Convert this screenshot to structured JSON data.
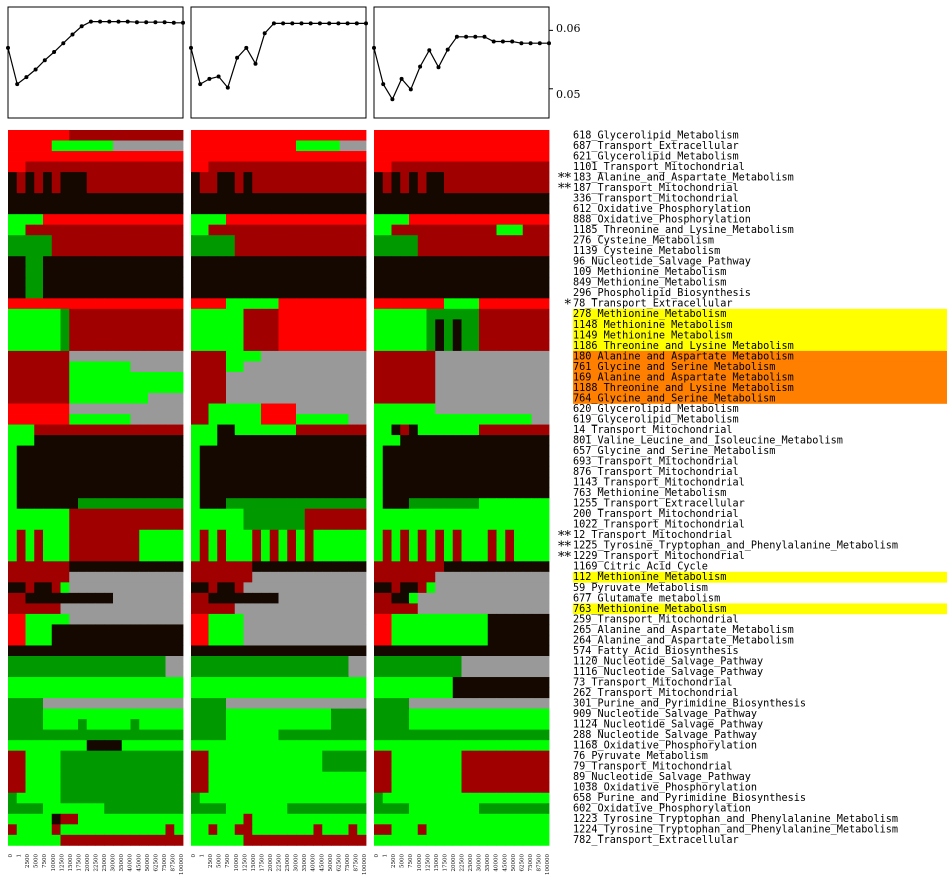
{
  "chart_data": {
    "type": "heatmap",
    "line_panels": [
      {
        "y": [
          0.057,
          0.0508,
          0.052,
          0.0533,
          0.0549,
          0.0563,
          0.0578,
          0.0593,
          0.0607,
          0.0615,
          0.0615,
          0.0615,
          0.0615,
          0.0615,
          0.0614,
          0.0614,
          0.0614,
          0.0614,
          0.0613,
          0.0613
        ]
      },
      {
        "y": [
          0.057,
          0.0508,
          0.0517,
          0.0521,
          0.0502,
          0.0553,
          0.057,
          0.0543,
          0.0595,
          0.0612,
          0.0612,
          0.0612,
          0.0612,
          0.0612,
          0.0612,
          0.0612,
          0.0612,
          0.0612,
          0.0612,
          0.0612
        ]
      },
      {
        "y": [
          0.057,
          0.0508,
          0.0482,
          0.0517,
          0.0499,
          0.0538,
          0.0566,
          0.0537,
          0.0567,
          0.0589,
          0.0589,
          0.0589,
          0.0589,
          0.0581,
          0.0581,
          0.0581,
          0.0578,
          0.0578,
          0.0578,
          0.0578
        ]
      }
    ],
    "ylim": [
      0.045,
      0.064
    ],
    "yticks": [
      "0.06",
      "0.05"
    ],
    "xticks": [
      "0",
      "1",
      "2500",
      "5000",
      "7500",
      "10000",
      "12500",
      "15000",
      "17500",
      "20000",
      "22500",
      "25000",
      "30000",
      "35000",
      "40000",
      "45000",
      "50000",
      "62500",
      "75000",
      "87500",
      "100000"
    ],
    "rows": [
      {
        "label": "618_Glycerolipid_Metabolism",
        "mark": "",
        "hl": ""
      },
      {
        "label": "687_Transport_Extracellular",
        "mark": "",
        "hl": ""
      },
      {
        "label": "621_Glycerolipid_Metabolism",
        "mark": "",
        "hl": ""
      },
      {
        "label": "1101_Transport_Mitochondrial",
        "mark": "",
        "hl": ""
      },
      {
        "label": "183_Alanine_and_Aspartate_Metabolism",
        "mark": "**",
        "hl": ""
      },
      {
        "label": "187_Transport_Mitochondrial",
        "mark": "**",
        "hl": ""
      },
      {
        "label": "336_Transport_Mitochondrial",
        "mark": "",
        "hl": ""
      },
      {
        "label": "612_Oxidative_Phosphorylation",
        "mark": "",
        "hl": ""
      },
      {
        "label": "888_Oxidative_Phosphorylation",
        "mark": "",
        "hl": ""
      },
      {
        "label": "1185_Threonine_and_Lysine_Metabolism",
        "mark": "",
        "hl": ""
      },
      {
        "label": "276_Cysteine_Metabolism",
        "mark": "",
        "hl": ""
      },
      {
        "label": "1139_Cysteine_Metabolism",
        "mark": "",
        "hl": ""
      },
      {
        "label": "96_Nucleotide_Salvage_Pathway",
        "mark": "",
        "hl": ""
      },
      {
        "label": "109_Methionine_Metabolism",
        "mark": "",
        "hl": ""
      },
      {
        "label": "849_Methionine_Metabolism",
        "mark": "",
        "hl": ""
      },
      {
        "label": "296_Phospholipid_Biosynthesis",
        "mark": "",
        "hl": ""
      },
      {
        "label": "78_Transport_Extracellular",
        "mark": "*",
        "hl": ""
      },
      {
        "label": "278_Methionine_Metabolism",
        "mark": "",
        "hl": "yellow"
      },
      {
        "label": "1148_Methionine_Metabolism",
        "mark": "",
        "hl": "yellow"
      },
      {
        "label": "1149_Methionine_Metabolism",
        "mark": "",
        "hl": "yellow"
      },
      {
        "label": "1186_Threonine_and_Lysine_Metabolism",
        "mark": "",
        "hl": "yellow"
      },
      {
        "label": "180_Alanine_and_Aspartate_Metabolism",
        "mark": "",
        "hl": "orange"
      },
      {
        "label": "761_Glycine_and_Serine_Metabolism",
        "mark": "",
        "hl": "orange"
      },
      {
        "label": "169_Alanine_and_Aspartate_Metabolism",
        "mark": "",
        "hl": "orange"
      },
      {
        "label": "1188_Threonine_and_Lysine_Metabolism",
        "mark": "",
        "hl": "orange"
      },
      {
        "label": "764_Glycine_and_Serine_Metabolism",
        "mark": "",
        "hl": "orange"
      },
      {
        "label": "620_Glycerolipid_Metabolism",
        "mark": "",
        "hl": ""
      },
      {
        "label": "619_Glycerolipid_Metabolism",
        "mark": "",
        "hl": ""
      },
      {
        "label": "14_Transport_Mitochondrial",
        "mark": "",
        "hl": ""
      },
      {
        "label": "801_Valine_Leucine_and_Isoleucine_Metabolism",
        "mark": "",
        "hl": ""
      },
      {
        "label": "657_Glycine_and_Serine_Metabolism",
        "mark": "",
        "hl": ""
      },
      {
        "label": "693_Transport_Mitochondrial",
        "mark": "",
        "hl": ""
      },
      {
        "label": "876_Transport_Mitochondrial",
        "mark": "",
        "hl": ""
      },
      {
        "label": "1143_Transport_Mitochondrial",
        "mark": "",
        "hl": ""
      },
      {
        "label": "763_Methionine_Metabolism",
        "mark": "",
        "hl": ""
      },
      {
        "label": "1255_Transport_Extracellular",
        "mark": "",
        "hl": ""
      },
      {
        "label": "200_Transport_Mitochondrial",
        "mark": "",
        "hl": ""
      },
      {
        "label": "1022_Transport_Mitochondrial",
        "mark": "",
        "hl": ""
      },
      {
        "label": "12_Transport_Mitochondrial",
        "mark": "**",
        "hl": ""
      },
      {
        "label": "1225_Tyrosine_Tryptophan_and_Phenylalanine_Metabolism",
        "mark": "**",
        "hl": ""
      },
      {
        "label": "1229_Transport_Mitochondrial",
        "mark": "**",
        "hl": ""
      },
      {
        "label": "1169_Citric_Acid_Cycle",
        "mark": "",
        "hl": ""
      },
      {
        "label": "112_Methionine_Metabolism",
        "mark": "",
        "hl": "yellow"
      },
      {
        "label": "59_Pyruvate_Metabolism",
        "mark": "",
        "hl": ""
      },
      {
        "label": "677_Glutamate_metabolism",
        "mark": "",
        "hl": ""
      },
      {
        "label": "763_Methionine_Metabolism",
        "mark": "",
        "hl": "yellow"
      },
      {
        "label": "259_Transport_Mitochondrial",
        "mark": "",
        "hl": ""
      },
      {
        "label": "265_Alanine_and_Aspartate_Metabolism",
        "mark": "",
        "hl": ""
      },
      {
        "label": "264_Alanine_and_Aspartate_Metabolism",
        "mark": "",
        "hl": ""
      },
      {
        "label": "574_Fatty_Acid_Biosynthesis",
        "mark": "",
        "hl": ""
      },
      {
        "label": "1120_Nucleotide_Salvage_Pathway",
        "mark": "",
        "hl": ""
      },
      {
        "label": "1116_Nucleotide_Salvage_Pathway",
        "mark": "",
        "hl": ""
      },
      {
        "label": "73_Transport_Mitochondrial",
        "mark": "",
        "hl": ""
      },
      {
        "label": "262_Transport_Mitochondrial",
        "mark": "",
        "hl": ""
      },
      {
        "label": "301_Purine_and_Pyrimidine_Biosynthesis",
        "mark": "",
        "hl": ""
      },
      {
        "label": "909_Nucleotide_Salvage_Pathway",
        "mark": "",
        "hl": ""
      },
      {
        "label": "1124_Nucleotide_Salvage_Pathway",
        "mark": "",
        "hl": ""
      },
      {
        "label": "288_Nucleotide_Salvage_Pathway",
        "mark": "",
        "hl": ""
      },
      {
        "label": "1168_Oxidative_Phosphorylation",
        "mark": "",
        "hl": ""
      },
      {
        "label": "76_Pyruvate_Metabolism",
        "mark": "",
        "hl": ""
      },
      {
        "label": "79_Transport_Mitochondrial",
        "mark": "",
        "hl": ""
      },
      {
        "label": "89_Nucleotide_Salvage_Pathway",
        "mark": "",
        "hl": ""
      },
      {
        "label": "1038_Oxidative_Phosphorylation",
        "mark": "",
        "hl": ""
      },
      {
        "label": "658_Purine_and_Pyrimidine_Biosynthesis",
        "mark": "",
        "hl": ""
      },
      {
        "label": "602_Oxidative_Phosphorylation",
        "mark": "",
        "hl": ""
      },
      {
        "label": "1223_Tyrosine_Tryptophan_and_Phenylalanine_Metabolism",
        "mark": "",
        "hl": ""
      },
      {
        "label": "1224_Tyrosine_Tryptophan_and_Phenylalanine_Metabolism",
        "mark": "",
        "hl": ""
      },
      {
        "label": "782_Transport_Extracellular",
        "mark": "",
        "hl": ""
      }
    ],
    "heatmaps": [
      [
        "RRRRRRRDDDDDDDDDDDDD",
        "RRRRRGGGGGGGYYYYYYYY",
        "RRRRRRRRRRRRRRRRRRRR",
        "RRDDDDDDDDDDDDDDDDDD",
        "KDKDKDKKKDDDDDDDDDDD",
        "KDKDKDKKKDDDDDDDDDDD",
        "KKKKKKKKKKKKKKKKKKKK",
        "KKKKKKKKKKKKKKKKKKKK",
        "GGGGRRRRRRRRRRRRRRRR",
        "GGDDDDDDDDDDDDDDDDDD",
        "ZZZZZDDDDDDDDDDDDDDD",
        "ZZZZZDDDDDDDDDDDDDDD",
        "KKZZKKKKKKKKKKKKKKKK",
        "KKZZKKKKKKKKKKKKKKKK",
        "KKZZKKKKKKKKKKKKKKKK",
        "KKZZKKKKKKKKKKKKKKKK",
        "RRRRRRRRRRRRRRRRRRRR",
        "GGGGGGZDDDDDDDDDDDDD",
        "GGGGGGZDDDDDDDDDDDDD",
        "GGGGGGZDDDDDDDDDDDDD",
        "GGGGGGZDDDDDDDDDDDDD",
        "DDDDDDDYYYYYYYYYYYYY",
        "DDDDDDDGGGGGGGYYYYYY",
        "DDDDDDDGGGGGGGGGGGGG",
        "DDDDDDDGGGGGGGGGGGGG",
        "DDDDDDDGGGGGGGGGYYYY",
        "RRRRRRRYYYYYYYYYYYYY",
        "RRRRRRRGGGGGGGYYYYYY",
        "GGGDDDDDDDDDDDDDDDDD",
        "GGGKKKKKKKKKKKKKKKKK",
        "GKKKKKKKKKKKKKKKKKKK",
        "GKKKKKKKKKKKKKKKKKKK",
        "GKKKKKKKKKKKKKKKKKKK",
        "GKKKKKKKKKKKKKKKKKKK",
        "GKKKKKKKKKKKKKKKKKKK",
        "GKKKKKKKZZZZZZZZZZZZ",
        "GGGGGGGDDDDDDDDDDDDD",
        "GGGGGGGDDDDDDDDDDDDD",
        "GDGDGGGDDDDDDDDGGGGG",
        "GDGDGGGDDDDDDDDGGGGG",
        "GDGDGGGDDDDDDDDGGGGG",
        "DDDDDDDKKKKKKKKKKKKK",
        "DDDDDDDYYYYYYYYYYYYY",
        "KKDKKDGYYYYYYYYYYYYY",
        "DDKKKKKKKKKKYYYYYYYY",
        "DDDDDDYYYYYYYYYYYYYY",
        "RRGGGGGYYYYYYYYYYYYY",
        "RRGGGKKKKKKKKKKKKKKK",
        "RRGGGKKKKKKKKKKKKKKK",
        "KKKKKKKKKKKKKKKKKKKK",
        "ZZZZZZZZZZZZZZZZZZYY",
        "ZZZZZZZZZZZZZZZZZZYY",
        "GGGGGGGGGGGGGGGGGGGG",
        "GGGGGGGGGGGGGGGGGGGG",
        "ZZZZYYYYYYYYYYYYYYYY",
        "ZZZZGGGGGGGGGGGGGGGG",
        "ZZZZGGGGZGGGGGZGGGGG",
        "ZZZZZZZZZZZZZZZZZZZZ",
        "GGGGGGGGGKKKKGGGGGGG",
        "DDGGGGZZZZZZZZZZZZZZ",
        "DDGGGGZZZZZZZZZZZZZZ",
        "DDGGGGZZZZZZZZZZZZZZ",
        "DDGGGGZZZZZZZZZZZZZZ",
        "ZGGGGGZZZZZZZZZZZZZZ",
        "ZZZZGGGGGGGZZZZZZZZZ",
        "GGGGGKDDGGGGGGGGGGGG",
        "DGGGGDGGGGGGGGGGGGDG",
        "GGGGGGDDDDDDDDDDDDDD"
      ],
      [
        "RRRRRRRRRRRRRRRRRRRR",
        "RRRRRRRRRRRRGGGGGYYY",
        "RRRRRRRRRRRRRRRRRRRR",
        "RRDDDDDDDDDDDDDDDDDD",
        "KDDKKDKDDDDDDDDDDDDD",
        "KDDKKDKDDDDDDDDDDDDD",
        "KKKKKKKKKKKKKKKKKKKK",
        "KKKKKKKKKKKKKKKKKKKK",
        "GGGGRRRRRRRRRRRRRRRR",
        "GGDDDDDDDDDDDDDDDDDD",
        "ZZZZZDDDDDDDDDDDDDDD",
        "ZZZZZDDDDDDDDDDDDDDD",
        "KKKKKKKKKKKKKKKKKKKK",
        "KKKKKKKKKKKKKKKKKKKK",
        "KKKKKKKKKKKKKKKKKKKK",
        "KKKKKKKKKKKKKKKKKKKK",
        "RRRRGGGGGGRRRRRRRRRR",
        "GGGGGGDDDDRRRRRRRRRR",
        "GGGGGGDDDDRRRRRRRRRR",
        "GGGGGGDDDDRRRRRRRRRR",
        "GGGGGGDDDDRRRRRRRRRR",
        "DDDDGGGGYYYYYYYYYYYY",
        "DDDDGGYYYYYYYYYYYYYY",
        "DDDDYYYYYYYYYYYYYYYY",
        "DDDDYYYYYYYYYYYYYYYY",
        "DDDDYYYYYYYYYYYYYYYY",
        "DDGGGGGGRRRRYYYYYYYY",
        "DDGGGGGGRRRRGGGGGGYY",
        "GGGKKGGGGGGGDDDDDDDD",
        "GGGKKKKKKKKKKKKKKKKK",
        "GKKKKKKKKKKKKKKKKKKK",
        "GKKKKKKKKKKKKKKKKKKK",
        "GKKKKKKKKKKKKKKKKKKK",
        "GKKKKKKKKKKKKKKKKKKK",
        "GKKKKKKKKKKKKKKKKKKK",
        "GKKKZZZZZZZZZZZZZZZZ",
        "GGGGGGZZZZZZZDDDDDDD",
        "GGGGGGZZZZZZZDDDDDDD",
        "GDGDGGGDGDGDGDGGGGGG",
        "GDGDGGGDGDGDGDGGGGGG",
        "GDGDGGGDGDGDGDGGGGGG",
        "DDDDDDDKKKKKKKKKKKKK",
        "DDDDDDDYYYYYYYYYYYYY",
        "KKDKKDYYYYYYYYYYYYYY",
        "DDKKKKKKKKYYYYYYYYYY",
        "DDDDDYYYYYYYYYYYYYYY",
        "RRGGGGYYYYYYYYYYYYYY",
        "RRGGGGYYYYYYYYYYYYYY",
        "RRGGGGYYYYYYYYYYYYYY",
        "KKKKKKKKKKKKKKKKKKKK",
        "ZZZZZZZZZZZZZZZZZZYY",
        "ZZZZZZZZZZZZZZZZZZYY",
        "GGGGGGGGGGGGGGGGGGGG",
        "GGGGGGGGGGGGGGGGGGGG",
        "ZZZZYYYYYYYYYYYYYYYY",
        "ZZZZGGGGGGGGGGGGZZZZ",
        "ZZZZGGGGGGGGGGGGZZZZ",
        "ZZZZGGGGGGZZZZZZZZZZ",
        "GGGGGGGGGGGGGGGGGGGG",
        "DDGGGGGGGGGGGGGZZZZZ",
        "DDGGGGGGGGGGGGGZZZZZ",
        "DDGGGGGGGGGGGGGGGGGG",
        "DDGGGGGGGGGGGGGGGGGG",
        "ZGGGGGGGGGGGGGGGGGGG",
        "ZZZZGGGGGGGZZZZZZZZZ",
        "GGGGGGDGGGGGGGGGGGGG",
        "GGDGGDDGGGGGGGDGGGDG",
        "GGGGGGDDDDDDDDDDDDDD"
      ],
      [
        "RRRRRRRRRRRRRRRRRRRR",
        "RRRRRRRRRRRRRRRRRRRR",
        "RRRRRRRRRRRRRRRRRRRR",
        "RRDDDDDDDDDDDDDDDDDD",
        "KDKDKDKKDDDDDDDDDDDD",
        "KDKDKDKKDDDDDDDDDDDD",
        "KKKKKKKKKKKKKKKKKKKK",
        "KKKKKKKKKKKKKKKKKKKK",
        "GGGGRRRRRRRRRRRRRRRR",
        "GGDDDDDDDDDDDDGGGDDD",
        "ZZZZZDDDDDDDDDDDDDDD",
        "ZZZZZDDDDDDDDDDDDDDD",
        "KKKKKKKKKKKKKKKKKKKK",
        "KKKKKKKKKKKKKKKKKKKK",
        "KKKKKKKKKKKKKKKKKKKK",
        "KKKKKKKKKKKKKKKKKKKK",
        "RRRRRRRRGGGGRRRRRRRR",
        "GGGGGGZZZZZZDDDDDDDD",
        "GGGGGGZKZKZZDDDDDDDD",
        "GGGGGGZKZKZZDDDDDDDD",
        "GGGGGGZKZKZZDDDDDDDD",
        "DDDDDDDYYYYYYYYYYYYY",
        "DDDDDDDYYYYYYYYYYYYY",
        "DDDDDDDYYYYYYYYYYYYY",
        "DDDDDDDYYYYYYYYYYYYY",
        "DDDDDDDYYYYYYYYYYYYY",
        "GGGGGGGYYYYYYYYYYYYY",
        "GGGGGGGGGGGGGGGGGGYY",
        "GGKDKGGGGGGGDDDDDDDD",
        "GGGKKKKKKKKKKKKKKKKK",
        "GKKKKKKKKKKKKKKKKKKK",
        "GKKKKKKKKKKKKKKKKKKK",
        "GKKKKKKKKKKKKKKKKKKK",
        "GKKKKKKKKKKKKKKKKKKK",
        "GKKKKKKKKKKKKKKKKKKK",
        "GKKKZZZZZZZZGGGGGGGG",
        "GGGGGGGGGGGGGGGGGGGG",
        "GGGGGGGGGGGGGGGGGGGG",
        "GDGDGDGDGDGGGDGDGGGG",
        "GDGDGDGDGDGGGDGDGGGG",
        "GDGDGDGDGDGGGDGDGGGG",
        "DDDDDDDDKKKKKKKKKKKK",
        "DDDDDDDYYYYYYYYYYYYY",
        "KKDKKDGYYYYYYYYYYYYY",
        "DDKKGYYYYYYYYYYYYYYY",
        "DDDDDYYYYYYYYYYYYYYY",
        "RRGGGGGGGGGGGKKKKKKK",
        "RRGGGGGGGGGGGKKKKKKK",
        "RRGGGGGGGGGGGKKKKKKK",
        "KKKKKKKKKKKKKKKKKKKK",
        "ZZZZZZZZZZYYYYYYYYYY",
        "ZZZZZZZZZZYYYYYYYYYY",
        "GGGGGGGGGKKKKKKKKKKK",
        "GGGGGGGGGKKKKKKKKKKK",
        "ZZZZYYYYYYYYYYYYYYYY",
        "ZZZZGGGGGGGGGGGGGGGG",
        "ZZZZGGGGGGGGGGGGGGGG",
        "ZZZZZZZZZZZZZZZZZZZZ",
        "GGGGGGGGGGGGGGGGGGGG",
        "DDGGGGGGGGDDDDDDDDDD",
        "DDGGGGGGGGDDDDDDDDDD",
        "DDGGGGGGGGDDDDDDDDDD",
        "DDGGGGGGGGDDDDDDDDDD",
        "ZGGGGGGGGGGGGGGGGGGG",
        "ZZZZGGGGGGGGZZZZZZZZ",
        "GGGGGGGGGGGGGGGGGGGG",
        "DDGGGDGGGGGGGGGGGGGG",
        "GGGGGGGGGGGGGGGGGGGG"
      ]
    ],
    "cell_colors": {
      "R": "#ff0000",
      "D": "#a00000",
      "K": "#140800",
      "G": "#00ff00",
      "Z": "#009a00",
      "Y": "#999999"
    },
    "highlight_colors": {
      "yellow": "#ffff00",
      "orange": "#ff7f00"
    }
  }
}
